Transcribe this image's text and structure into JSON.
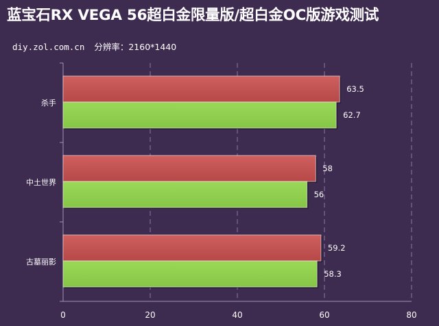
{
  "header": {
    "title": "蓝宝石RX VEGA 56超白金限量版/超白金OC版游戏测试",
    "site": "diy.zol.com.cn",
    "resolution_text": "分辨率：2160*1440"
  },
  "colors": {
    "background": "#3d2b50",
    "series_red": "#c05050",
    "series_green": "#92d050",
    "grid": "#8a7aa0",
    "axis": "#a096b4"
  },
  "chart_data": {
    "type": "bar",
    "orientation": "horizontal",
    "title": "",
    "xlabel": "",
    "ylabel": "",
    "categories": [
      "杀手",
      "中土世界",
      "古墓丽影"
    ],
    "series": [
      {
        "color": "#c05050",
        "values": [
          63.5,
          58,
          59.2
        ],
        "labels": [
          "63.5",
          "58",
          "59.2"
        ]
      },
      {
        "color": "#92d050",
        "values": [
          62.7,
          56,
          58.3
        ],
        "labels": [
          "62.7",
          "56",
          "58.3"
        ]
      }
    ],
    "xlim": [
      0,
      80
    ],
    "x_ticks": [
      0,
      20,
      40,
      60,
      80
    ],
    "x_tick_labels": [
      "0",
      "20",
      "40",
      "60",
      "80"
    ],
    "grid": true,
    "legend": "none"
  }
}
